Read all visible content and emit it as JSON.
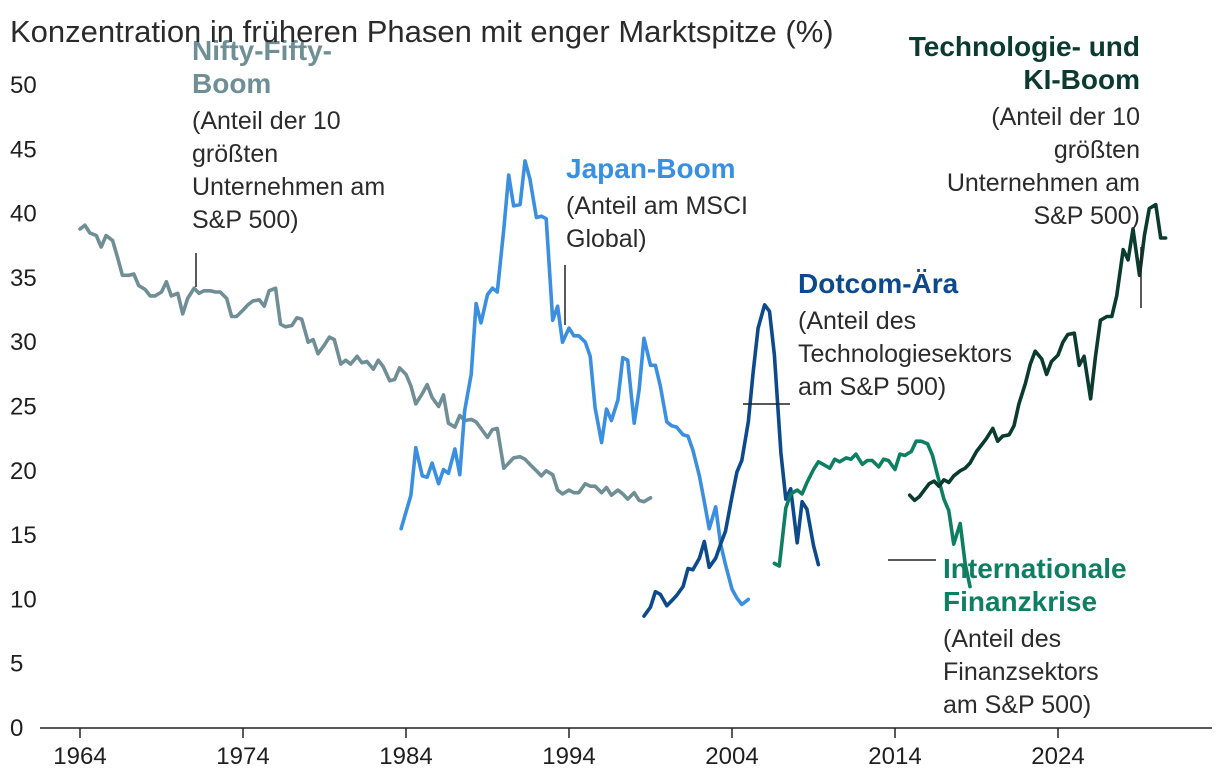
{
  "chart_data": {
    "type": "line",
    "title": "Konzentration in früheren Phasen mit enger Marktspitze (%)",
    "xlim": [
      1964,
      2027.5
    ],
    "ylim": [
      0,
      50
    ],
    "y_ticks": [
      "0",
      "5",
      "10",
      "15",
      "20",
      "25",
      "30",
      "35",
      "40",
      "45",
      "50"
    ],
    "x_ticks": [
      "1964",
      "1974",
      "1984",
      "1994",
      "2004",
      "2014",
      "2024"
    ],
    "series": [
      {
        "name": "Nifty-Fifty-Boom",
        "color": "#6f8e95",
        "points": [
          [
            1964,
            38.8
          ],
          [
            1964.3,
            39.1
          ],
          [
            1964.6,
            38.5
          ],
          [
            1965,
            38.3
          ],
          [
            1965.3,
            37.4
          ],
          [
            1965.6,
            38.3
          ],
          [
            1966,
            37.9
          ],
          [
            1966.3,
            36.6
          ],
          [
            1966.6,
            35.2
          ],
          [
            1967,
            35.2
          ],
          [
            1967.3,
            35.3
          ],
          [
            1967.6,
            34.4
          ],
          [
            1968,
            34.1
          ],
          [
            1968.3,
            33.6
          ],
          [
            1968.6,
            33.6
          ],
          [
            1969,
            33.9
          ],
          [
            1969.3,
            34.7
          ],
          [
            1969.6,
            33.6
          ],
          [
            1970,
            33.8
          ],
          [
            1970.3,
            32.2
          ],
          [
            1970.6,
            33.4
          ],
          [
            1971,
            34.2
          ],
          [
            1971.3,
            33.8
          ],
          [
            1971.6,
            34
          ],
          [
            1972,
            34
          ],
          [
            1972.3,
            33.9
          ],
          [
            1972.6,
            33.9
          ],
          [
            1973,
            33.4
          ],
          [
            1973.3,
            32
          ],
          [
            1973.6,
            32
          ],
          [
            1974,
            32.5
          ],
          [
            1974.3,
            32.9
          ],
          [
            1974.6,
            33.2
          ],
          [
            1975,
            33.3
          ],
          [
            1975.3,
            32.8
          ],
          [
            1975.6,
            34
          ],
          [
            1976,
            34.2
          ],
          [
            1976.3,
            31.4
          ],
          [
            1976.6,
            31.2
          ],
          [
            1977,
            31.3
          ],
          [
            1977.3,
            31.9
          ],
          [
            1977.6,
            31.8
          ],
          [
            1978,
            30
          ],
          [
            1978.3,
            30.2
          ],
          [
            1978.6,
            29.1
          ],
          [
            1979,
            29.8
          ],
          [
            1979.3,
            30.4
          ],
          [
            1979.6,
            30.2
          ],
          [
            1980,
            28.3
          ],
          [
            1980.3,
            28.6
          ],
          [
            1980.6,
            28.3
          ],
          [
            1981,
            28.9
          ],
          [
            1981.3,
            28.4
          ],
          [
            1981.6,
            28.5
          ],
          [
            1982,
            27.9
          ],
          [
            1982.3,
            28.6
          ],
          [
            1982.6,
            28.1
          ],
          [
            1983,
            27
          ],
          [
            1983.3,
            27.1
          ],
          [
            1983.6,
            28
          ],
          [
            1984,
            27.5
          ],
          [
            1984.3,
            26.6
          ],
          [
            1984.6,
            25.2
          ],
          [
            1985,
            26
          ],
          [
            1985.3,
            26.7
          ],
          [
            1985.6,
            25.7
          ],
          [
            1986,
            25
          ],
          [
            1986.3,
            25.9
          ],
          [
            1986.6,
            23.7
          ],
          [
            1987,
            23.4
          ],
          [
            1987.3,
            24.3
          ],
          [
            1987.6,
            23.9
          ],
          [
            1988,
            24
          ],
          [
            1988.3,
            23.8
          ],
          [
            1988.6,
            23.3
          ],
          [
            1989,
            22.6
          ],
          [
            1989.3,
            23.2
          ],
          [
            1989.6,
            23.3
          ],
          [
            1990,
            20.2
          ],
          [
            1990.3,
            20.6
          ],
          [
            1990.6,
            21
          ],
          [
            1991,
            21.1
          ],
          [
            1991.3,
            20.9
          ],
          [
            1991.6,
            20.5
          ],
          [
            1992,
            20
          ],
          [
            1992.3,
            19.6
          ],
          [
            1992.6,
            20
          ],
          [
            1993,
            19.7
          ],
          [
            1993.3,
            18.5
          ],
          [
            1993.6,
            18.2
          ],
          [
            1994,
            18.5
          ],
          [
            1994.3,
            18.3
          ],
          [
            1994.6,
            18.3
          ],
          [
            1995,
            19
          ],
          [
            1995.3,
            18.8
          ],
          [
            1995.6,
            18.8
          ],
          [
            1996,
            18.3
          ],
          [
            1996.3,
            18.7
          ],
          [
            1996.6,
            18.1
          ],
          [
            1997,
            18.5
          ],
          [
            1997.3,
            18.2
          ],
          [
            1997.6,
            17.8
          ],
          [
            1998,
            18.3
          ],
          [
            1998.3,
            17.7
          ],
          [
            1998.6,
            17.6
          ],
          [
            1999,
            17.9
          ]
        ]
      },
      {
        "name": "Japan-Boom",
        "color": "#3b8fe0",
        "points": [
          [
            1983.7,
            15.5
          ],
          [
            1984,
            16.8
          ],
          [
            1984.3,
            18.1
          ],
          [
            1984.6,
            21.8
          ],
          [
            1985,
            19.6
          ],
          [
            1985.3,
            19.5
          ],
          [
            1985.6,
            20.6
          ],
          [
            1986,
            19
          ],
          [
            1986.3,
            20.1
          ],
          [
            1986.6,
            19.8
          ],
          [
            1987,
            21.7
          ],
          [
            1987.3,
            19.7
          ],
          [
            1987.6,
            24.7
          ],
          [
            1988,
            27.5
          ],
          [
            1988.3,
            33
          ],
          [
            1988.6,
            31.5
          ],
          [
            1989,
            33.7
          ],
          [
            1989.3,
            34.2
          ],
          [
            1989.6,
            33.9
          ],
          [
            1990,
            38.8
          ],
          [
            1990.3,
            43
          ],
          [
            1990.6,
            40.6
          ],
          [
            1991,
            40.7
          ],
          [
            1991.3,
            44.1
          ],
          [
            1991.6,
            42.7
          ],
          [
            1992,
            39.7
          ],
          [
            1992.3,
            39.8
          ],
          [
            1992.6,
            39.6
          ],
          [
            1993,
            31.7
          ],
          [
            1993.3,
            32.8
          ],
          [
            1993.6,
            30
          ],
          [
            1994,
            31.1
          ],
          [
            1994.3,
            30.5
          ],
          [
            1994.6,
            30.5
          ],
          [
            1995,
            30
          ],
          [
            1995.3,
            28.9
          ],
          [
            1995.6,
            24.9
          ],
          [
            1996,
            22.2
          ],
          [
            1996.3,
            24.8
          ],
          [
            1996.6,
            23.9
          ],
          [
            1997,
            25.5
          ],
          [
            1997.3,
            28.8
          ],
          [
            1997.6,
            28.6
          ],
          [
            1998,
            23.7
          ],
          [
            1998.3,
            26.3
          ],
          [
            1998.6,
            30.3
          ],
          [
            1999,
            28.2
          ],
          [
            1999.3,
            28.2
          ],
          [
            1999.6,
            26.6
          ],
          [
            2000,
            23.8
          ],
          [
            2000.3,
            23.5
          ],
          [
            2000.6,
            23.4
          ],
          [
            2001,
            22.8
          ],
          [
            2001.3,
            22.7
          ],
          [
            2001.6,
            21.6
          ],
          [
            2002,
            19.6
          ],
          [
            2002.3,
            17.6
          ],
          [
            2002.6,
            15.5
          ],
          [
            2003,
            17.2
          ],
          [
            2003.3,
            14.3
          ],
          [
            2003.6,
            12.7
          ],
          [
            2004,
            10.8
          ],
          [
            2004.3,
            10.1
          ],
          [
            2004.6,
            9.6
          ],
          [
            2005,
            10
          ]
        ]
      },
      {
        "name": "Dotcom-Ära",
        "color": "#0c4a8c",
        "points": [
          [
            1998.6,
            8.7
          ],
          [
            1999,
            9.4
          ],
          [
            1999.3,
            10.6
          ],
          [
            1999.6,
            10.4
          ],
          [
            2000,
            9.5
          ],
          [
            2000.3,
            9.9
          ],
          [
            2000.6,
            10.3
          ],
          [
            2001,
            11
          ],
          [
            2001.3,
            12.4
          ],
          [
            2001.6,
            12.3
          ],
          [
            2002,
            13.2
          ],
          [
            2002.3,
            14.5
          ],
          [
            2002.6,
            12.5
          ],
          [
            2003,
            13.2
          ],
          [
            2003.3,
            14.3
          ],
          [
            2003.6,
            15.3
          ],
          [
            2004,
            18
          ],
          [
            2004.3,
            19.9
          ],
          [
            2004.6,
            20.8
          ],
          [
            2005,
            23.8
          ],
          [
            2005.3,
            27.7
          ],
          [
            2005.6,
            31.1
          ],
          [
            2006,
            32.9
          ],
          [
            2006.3,
            32.4
          ],
          [
            2006.6,
            29
          ],
          [
            2007,
            21.4
          ],
          [
            2007.3,
            17.8
          ],
          [
            2007.6,
            18.6
          ],
          [
            2008,
            14.4
          ],
          [
            2008.3,
            17.6
          ],
          [
            2008.6,
            17
          ],
          [
            2009,
            14.2
          ],
          [
            2009.3,
            12.7
          ]
        ]
      },
      {
        "name": "Internationale Finanzkrise",
        "color": "#0f7f63",
        "points": [
          [
            2006.6,
            12.8
          ],
          [
            2006.9,
            12.6
          ],
          [
            2007.3,
            17.1
          ],
          [
            2007.6,
            18.2
          ],
          [
            2008,
            18.5
          ],
          [
            2008.3,
            18.2
          ],
          [
            2008.6,
            19.1
          ],
          [
            2009,
            20.1
          ],
          [
            2009.3,
            20.7
          ],
          [
            2009.6,
            20.5
          ],
          [
            2010,
            20.2
          ],
          [
            2010.3,
            20.9
          ],
          [
            2010.6,
            20.7
          ],
          [
            2011,
            21
          ],
          [
            2011.3,
            20.9
          ],
          [
            2011.6,
            21.3
          ],
          [
            2012,
            20.5
          ],
          [
            2012.3,
            20.8
          ],
          [
            2012.6,
            20.8
          ],
          [
            2013,
            20.3
          ],
          [
            2013.3,
            20.9
          ],
          [
            2013.6,
            20.8
          ],
          [
            2014,
            20.1
          ],
          [
            2014.3,
            21.3
          ],
          [
            2014.6,
            21.2
          ],
          [
            2015,
            21.5
          ],
          [
            2015.3,
            22.3
          ],
          [
            2015.6,
            22.3
          ],
          [
            2016,
            22.1
          ],
          [
            2016.3,
            21.2
          ],
          [
            2016.6,
            19.7
          ],
          [
            2017,
            17.8
          ],
          [
            2017.3,
            16.9
          ],
          [
            2017.6,
            14.3
          ],
          [
            2018,
            15.9
          ],
          [
            2018.3,
            12.8
          ],
          [
            2018.6,
            11
          ]
        ]
      },
      {
        "name": "Technologie- und KI-Boom",
        "color": "#0b3b2e",
        "points": [
          [
            2014.9,
            18.1
          ],
          [
            2015.2,
            17.7
          ],
          [
            2015.5,
            18
          ],
          [
            2015.8,
            18.5
          ],
          [
            2016.1,
            19
          ],
          [
            2016.4,
            19.2
          ],
          [
            2016.7,
            18.8
          ],
          [
            2017,
            19.3
          ],
          [
            2017.3,
            19.1
          ],
          [
            2017.6,
            19.6
          ],
          [
            2018,
            20
          ],
          [
            2018.3,
            20.2
          ],
          [
            2018.6,
            20.6
          ],
          [
            2019,
            21.5
          ],
          [
            2019.3,
            22
          ],
          [
            2019.6,
            22.5
          ],
          [
            2020,
            23.3
          ],
          [
            2020.3,
            22.3
          ],
          [
            2020.6,
            22.7
          ],
          [
            2021,
            22.8
          ],
          [
            2021.3,
            23.5
          ],
          [
            2021.6,
            25.2
          ],
          [
            2022,
            26.8
          ],
          [
            2022.3,
            28.3
          ],
          [
            2022.6,
            29.3
          ],
          [
            2023,
            28.7
          ],
          [
            2023.3,
            27.5
          ],
          [
            2023.6,
            28.5
          ],
          [
            2024,
            29
          ],
          [
            2024.3,
            30
          ],
          [
            2024.6,
            30.6
          ],
          [
            2025,
            30.7
          ],
          [
            2025.3,
            28.2
          ],
          [
            2025.6,
            28.9
          ],
          [
            2026,
            25.6
          ],
          [
            2026.3,
            28.9
          ],
          [
            2026.6,
            31.7
          ],
          [
            2027,
            32
          ],
          [
            2027.3,
            32
          ],
          [
            2027.6,
            33.6
          ],
          [
            2028,
            37.2
          ],
          [
            2028.3,
            36.4
          ],
          [
            2028.6,
            38.8
          ],
          [
            2029,
            35.2
          ],
          [
            2029.3,
            38.3
          ],
          [
            2029.6,
            40.4
          ],
          [
            2030,
            40.7
          ],
          [
            2030.3,
            38.1
          ],
          [
            2030.6,
            38.1
          ]
        ]
      }
    ]
  },
  "annotations": {
    "nifty": {
      "head": [
        "Nifty-Fifty-",
        "Boom"
      ],
      "sub": [
        "(Anteil der 10",
        "größten",
        "Unternehmen am",
        "S&P 500)"
      ],
      "color": "#6f8e95"
    },
    "japan": {
      "head": [
        "Japan-Boom"
      ],
      "sub": [
        "(Anteil am MSCI",
        "Global)"
      ],
      "color": "#3b8fe0"
    },
    "dotcom": {
      "head": [
        "Dotcom-Ära"
      ],
      "sub": [
        "(Anteil des",
        "Technologiesektors",
        "am S&P 500)"
      ],
      "color": "#0c4a8c"
    },
    "finanz": {
      "head": [
        "Internationale",
        "Finanzkrise"
      ],
      "sub": [
        "(Anteil des",
        "Finanzsektors",
        "am S&P 500)"
      ],
      "color": "#0f7f63"
    },
    "tech": {
      "head": [
        "Technologie- und",
        "KI-Boom"
      ],
      "sub": [
        "(Anteil der 10",
        "größten",
        "Unternehmen am",
        "S&P 500)"
      ],
      "color": "#0b3b2e"
    }
  }
}
